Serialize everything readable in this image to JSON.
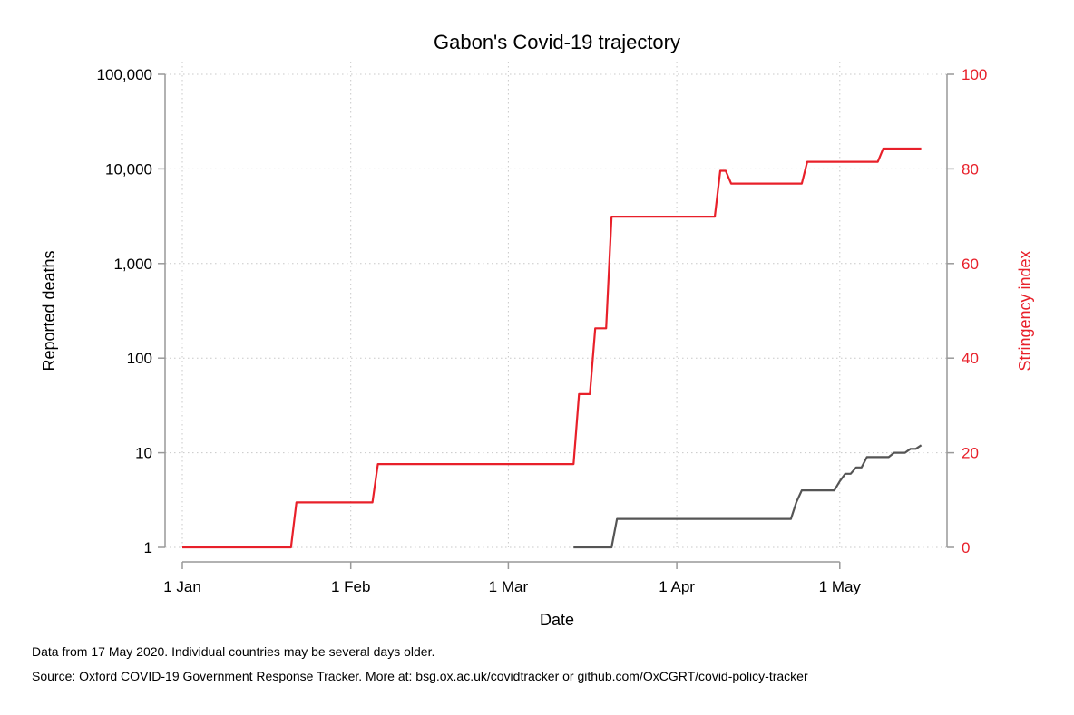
{
  "chart_data": {
    "type": "line",
    "title": "Gabon's Covid-19 trajectory",
    "xlabel": "Date",
    "x_ticks": [
      {
        "date": "2020-01-01",
        "label": "1 Jan"
      },
      {
        "date": "2020-02-01",
        "label": "1 Feb"
      },
      {
        "date": "2020-03-01",
        "label": "1 Mar"
      },
      {
        "date": "2020-04-01",
        "label": "1 Apr"
      },
      {
        "date": "2020-05-01",
        "label": "1 May"
      }
    ],
    "xlim": [
      "2020-01-01",
      "2020-05-17"
    ],
    "grid": true,
    "left_axis": {
      "label": "Reported deaths",
      "scale": "log",
      "range": [
        1,
        100000
      ],
      "ticks": [
        {
          "value": 1,
          "label": "1"
        },
        {
          "value": 10,
          "label": "10"
        },
        {
          "value": 100,
          "label": "100"
        },
        {
          "value": 1000,
          "label": "1,000"
        },
        {
          "value": 10000,
          "label": "10,000"
        },
        {
          "value": 100000,
          "label": "100,000"
        }
      ],
      "color": "#000000"
    },
    "right_axis": {
      "label": "Stringency index",
      "scale": "linear",
      "range": [
        0,
        100
      ],
      "ticks": [
        {
          "value": 0,
          "label": "0"
        },
        {
          "value": 20,
          "label": "20"
        },
        {
          "value": 40,
          "label": "40"
        },
        {
          "value": 60,
          "label": "60"
        },
        {
          "value": 80,
          "label": "80"
        },
        {
          "value": 100,
          "label": "100"
        }
      ],
      "color": "#e8202a"
    },
    "series": [
      {
        "axis": "right",
        "color": "#e8202a",
        "points": [
          [
            "2020-01-01",
            0
          ],
          [
            "2020-01-21",
            0
          ],
          [
            "2020-01-22",
            9.5
          ],
          [
            "2020-02-05",
            9.5
          ],
          [
            "2020-02-06",
            17.6
          ],
          [
            "2020-03-13",
            17.6
          ],
          [
            "2020-03-14",
            32.4
          ],
          [
            "2020-03-16",
            32.4
          ],
          [
            "2020-03-17",
            46.3
          ],
          [
            "2020-03-19",
            46.3
          ],
          [
            "2020-03-20",
            69.9
          ],
          [
            "2020-04-08",
            69.9
          ],
          [
            "2020-04-09",
            79.6
          ],
          [
            "2020-04-10",
            79.6
          ],
          [
            "2020-04-11",
            76.9
          ],
          [
            "2020-04-24",
            76.9
          ],
          [
            "2020-04-25",
            81.5
          ],
          [
            "2020-05-08",
            81.5
          ],
          [
            "2020-05-09",
            84.3
          ],
          [
            "2020-05-16",
            84.3
          ]
        ]
      },
      {
        "axis": "left",
        "color": "#555555",
        "points": [
          [
            "2020-03-13",
            1
          ],
          [
            "2020-03-20",
            1
          ],
          [
            "2020-03-21",
            2
          ],
          [
            "2020-04-22",
            2
          ],
          [
            "2020-04-23",
            3
          ],
          [
            "2020-04-24",
            4
          ],
          [
            "2020-04-30",
            4
          ],
          [
            "2020-05-01",
            5
          ],
          [
            "2020-05-02",
            6
          ],
          [
            "2020-05-03",
            6
          ],
          [
            "2020-05-04",
            7
          ],
          [
            "2020-05-05",
            7
          ],
          [
            "2020-05-06",
            9
          ],
          [
            "2020-05-10",
            9
          ],
          [
            "2020-05-11",
            10
          ],
          [
            "2020-05-13",
            10
          ],
          [
            "2020-05-14",
            11
          ],
          [
            "2020-05-15",
            11
          ],
          [
            "2020-05-16",
            12
          ]
        ]
      }
    ]
  },
  "footnotes": {
    "line1": "Data from 17 May 2020. Individual countries may be several days older.",
    "line2": "Source: Oxford COVID-19 Government Response Tracker. More at: bsg.ox.ac.uk/covidtracker or github.com/OxCGRT/covid-policy-tracker"
  }
}
